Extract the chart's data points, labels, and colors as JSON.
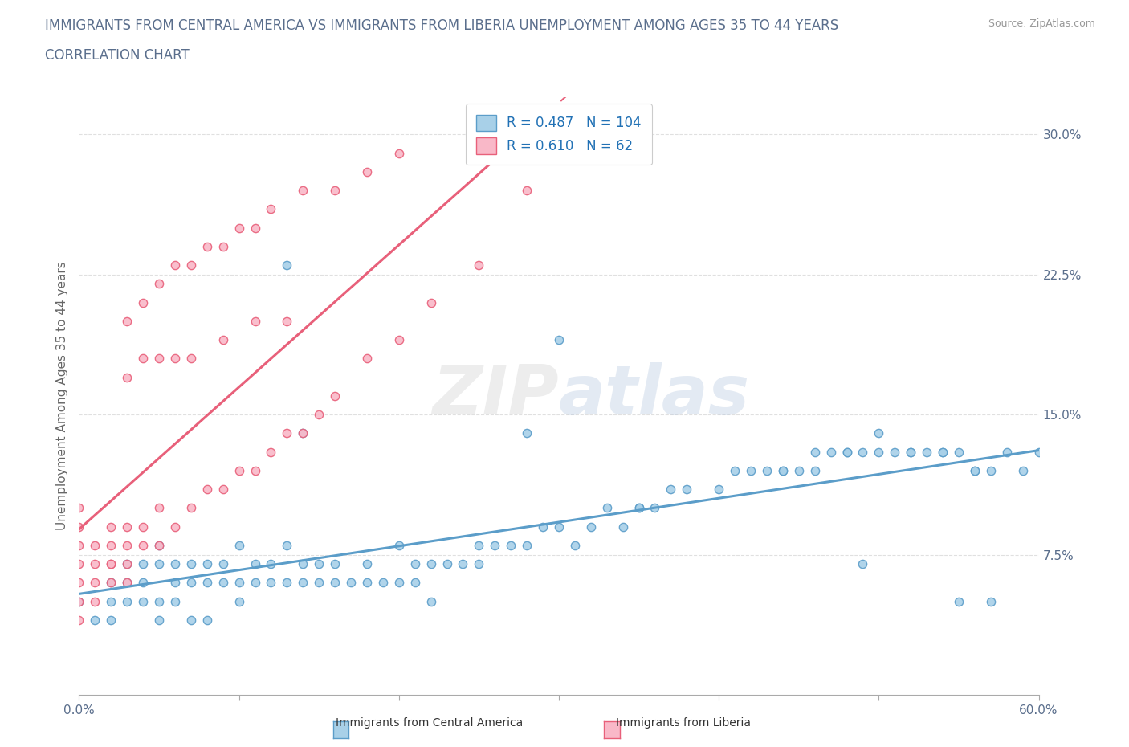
{
  "title_line1": "IMMIGRANTS FROM CENTRAL AMERICA VS IMMIGRANTS FROM LIBERIA UNEMPLOYMENT AMONG AGES 35 TO 44 YEARS",
  "title_line2": "CORRELATION CHART",
  "source": "Source: ZipAtlas.com",
  "ylabel": "Unemployment Among Ages 35 to 44 years",
  "xlim": [
    0.0,
    0.6
  ],
  "ylim": [
    0.0,
    0.32
  ],
  "xticks": [
    0.0,
    0.1,
    0.2,
    0.3,
    0.4,
    0.5,
    0.6
  ],
  "yticks_right": [
    0.0,
    0.075,
    0.15,
    0.225,
    0.3
  ],
  "yticklabels_right": [
    "",
    "7.5%",
    "15.0%",
    "22.5%",
    "30.0%"
  ],
  "r_blue": 0.487,
  "n_blue": 104,
  "r_pink": 0.61,
  "n_pink": 62,
  "blue_color": "#a8d0e8",
  "pink_color": "#f9b8c8",
  "blue_edge_color": "#5b9dc9",
  "pink_edge_color": "#e8607a",
  "blue_line_color": "#5b9dc9",
  "pink_line_color": "#e8607a",
  "title_color": "#5a6e8c",
  "legend_r_color": "#2171b5",
  "watermark": "ZIPatlas",
  "blue_scatter_x": [
    0.0,
    0.01,
    0.02,
    0.02,
    0.03,
    0.03,
    0.04,
    0.04,
    0.05,
    0.05,
    0.05,
    0.06,
    0.06,
    0.07,
    0.07,
    0.08,
    0.08,
    0.09,
    0.09,
    0.1,
    0.1,
    0.11,
    0.11,
    0.12,
    0.12,
    0.13,
    0.13,
    0.14,
    0.14,
    0.15,
    0.15,
    0.16,
    0.17,
    0.18,
    0.18,
    0.19,
    0.2,
    0.2,
    0.21,
    0.22,
    0.23,
    0.24,
    0.25,
    0.26,
    0.27,
    0.28,
    0.29,
    0.3,
    0.32,
    0.33,
    0.35,
    0.37,
    0.38,
    0.4,
    0.42,
    0.44,
    0.45,
    0.46,
    0.47,
    0.48,
    0.49,
    0.5,
    0.51,
    0.52,
    0.53,
    0.54,
    0.55,
    0.56,
    0.57,
    0.58,
    0.59,
    0.6,
    0.14,
    0.35,
    0.43,
    0.44,
    0.48,
    0.5,
    0.52,
    0.54,
    0.55,
    0.56,
    0.57,
    0.49,
    0.46,
    0.22,
    0.28,
    0.3,
    0.36,
    0.41,
    0.13,
    0.08,
    0.06,
    0.04,
    0.03,
    0.02,
    0.05,
    0.07,
    0.1,
    0.16,
    0.21,
    0.25,
    0.31,
    0.34
  ],
  "blue_scatter_y": [
    0.05,
    0.04,
    0.05,
    0.06,
    0.06,
    0.07,
    0.06,
    0.07,
    0.05,
    0.07,
    0.08,
    0.06,
    0.07,
    0.06,
    0.07,
    0.06,
    0.07,
    0.06,
    0.07,
    0.06,
    0.08,
    0.06,
    0.07,
    0.06,
    0.07,
    0.06,
    0.08,
    0.06,
    0.07,
    0.06,
    0.07,
    0.07,
    0.06,
    0.06,
    0.07,
    0.06,
    0.06,
    0.08,
    0.07,
    0.07,
    0.07,
    0.07,
    0.08,
    0.08,
    0.08,
    0.08,
    0.09,
    0.09,
    0.09,
    0.1,
    0.1,
    0.11,
    0.11,
    0.11,
    0.12,
    0.12,
    0.12,
    0.13,
    0.13,
    0.13,
    0.13,
    0.14,
    0.13,
    0.13,
    0.13,
    0.13,
    0.13,
    0.12,
    0.12,
    0.13,
    0.12,
    0.13,
    0.14,
    0.1,
    0.12,
    0.12,
    0.13,
    0.13,
    0.13,
    0.13,
    0.05,
    0.12,
    0.05,
    0.07,
    0.12,
    0.05,
    0.14,
    0.19,
    0.1,
    0.12,
    0.23,
    0.04,
    0.05,
    0.05,
    0.05,
    0.04,
    0.04,
    0.04,
    0.05,
    0.06,
    0.06,
    0.07,
    0.08,
    0.09
  ],
  "pink_scatter_x": [
    0.0,
    0.0,
    0.0,
    0.0,
    0.0,
    0.0,
    0.0,
    0.01,
    0.01,
    0.01,
    0.02,
    0.02,
    0.02,
    0.03,
    0.03,
    0.03,
    0.04,
    0.04,
    0.05,
    0.05,
    0.06,
    0.07,
    0.08,
    0.09,
    0.1,
    0.11,
    0.12,
    0.13,
    0.14,
    0.15,
    0.16,
    0.18,
    0.2,
    0.22,
    0.25,
    0.28,
    0.03,
    0.04,
    0.05,
    0.06,
    0.07,
    0.08,
    0.09,
    0.1,
    0.11,
    0.12,
    0.14,
    0.16,
    0.18,
    0.2,
    0.03,
    0.04,
    0.05,
    0.06,
    0.07,
    0.09,
    0.11,
    0.13,
    0.01,
    0.02,
    0.02,
    0.03
  ],
  "pink_scatter_y": [
    0.05,
    0.06,
    0.07,
    0.08,
    0.09,
    0.1,
    0.04,
    0.05,
    0.06,
    0.08,
    0.06,
    0.07,
    0.09,
    0.07,
    0.08,
    0.09,
    0.08,
    0.09,
    0.08,
    0.1,
    0.09,
    0.1,
    0.11,
    0.11,
    0.12,
    0.12,
    0.13,
    0.14,
    0.14,
    0.15,
    0.16,
    0.18,
    0.19,
    0.21,
    0.23,
    0.27,
    0.2,
    0.21,
    0.22,
    0.23,
    0.23,
    0.24,
    0.24,
    0.25,
    0.25,
    0.26,
    0.27,
    0.27,
    0.28,
    0.29,
    0.17,
    0.18,
    0.18,
    0.18,
    0.18,
    0.19,
    0.2,
    0.2,
    0.07,
    0.07,
    0.08,
    0.06
  ],
  "background_color": "#ffffff",
  "grid_color": "#e0e0e0"
}
